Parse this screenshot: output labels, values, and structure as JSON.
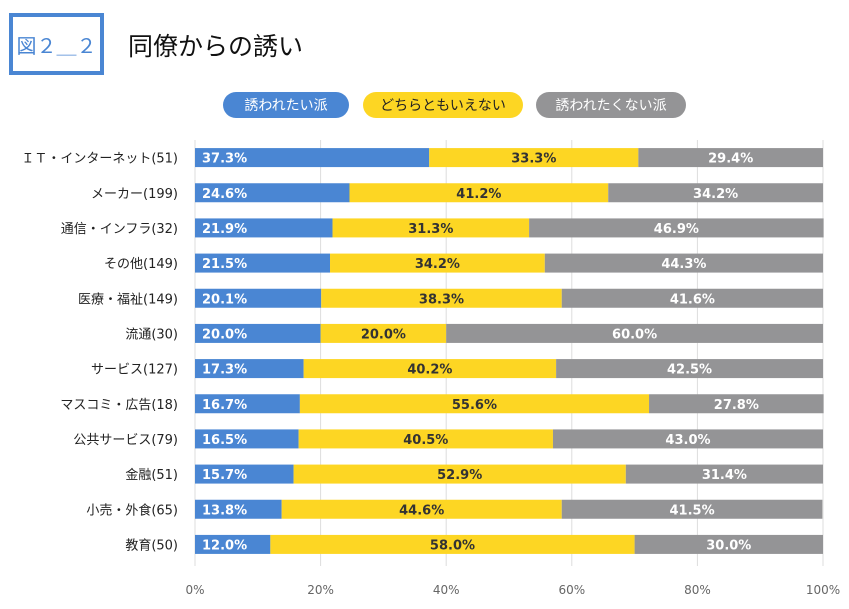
{
  "header": {
    "figure_label": "図２＿２",
    "title": "同僚からの誘い"
  },
  "chart_data": {
    "type": "bar",
    "orientation": "horizontal",
    "stacked": true,
    "categories": [
      "ＩＴ・インターネット(51)",
      "メーカー(199)",
      "通信・インフラ(32)",
      "その他(149)",
      "医療・福祉(149)",
      "流通(30)",
      "サービス(127)",
      "マスコミ・広告(18)",
      "公共サービス(79)",
      "金融(51)",
      "小売・外食(65)",
      "教育(50)"
    ],
    "series": [
      {
        "name": "誘われたい派",
        "color": "#4a86d3",
        "label_color": "#ffffff",
        "values": [
          37.3,
          24.6,
          21.9,
          21.5,
          20.1,
          20.0,
          17.3,
          16.7,
          16.5,
          15.7,
          13.8,
          12.0
        ],
        "labels": [
          "37.3%",
          "24.6%",
          "21.9%",
          "21.5%",
          "20.1%",
          "20.0%",
          "17.3%",
          "16.7%",
          "16.5%",
          "15.7%",
          "13.8%",
          "12.0%"
        ]
      },
      {
        "name": "どちらともいえない",
        "color": "#fdd623",
        "label_color": "#333333",
        "values": [
          33.3,
          41.2,
          31.3,
          34.2,
          38.3,
          20.0,
          40.2,
          55.6,
          40.5,
          52.9,
          44.6,
          58.0
        ],
        "labels": [
          "33.3%",
          "41.2%",
          "31.3%",
          "34.2%",
          "38.3%",
          "20.0%",
          "40.2%",
          "55.6%",
          "40.5%",
          "52.9%",
          "44.6%",
          "58.0%"
        ]
      },
      {
        "name": "誘われたくない派",
        "color": "#949496",
        "label_color": "#ffffff",
        "values": [
          29.4,
          34.2,
          46.9,
          44.3,
          41.6,
          60.0,
          42.5,
          27.8,
          43.0,
          31.4,
          41.5,
          30.0
        ],
        "labels": [
          "29.4%",
          "34.2%",
          "46.9%",
          "44.3%",
          "41.6%",
          "60.0%",
          "42.5%",
          "27.8%",
          "43.0%",
          "31.4%",
          "41.5%",
          "30.0%"
        ]
      }
    ],
    "xlim": [
      0,
      100
    ],
    "xticks": [
      0,
      20,
      40,
      60,
      80,
      100
    ],
    "xtick_labels": [
      "0%",
      "20%",
      "40%",
      "60%",
      "80%",
      "100%"
    ],
    "grid": true,
    "legend_position": "top"
  }
}
